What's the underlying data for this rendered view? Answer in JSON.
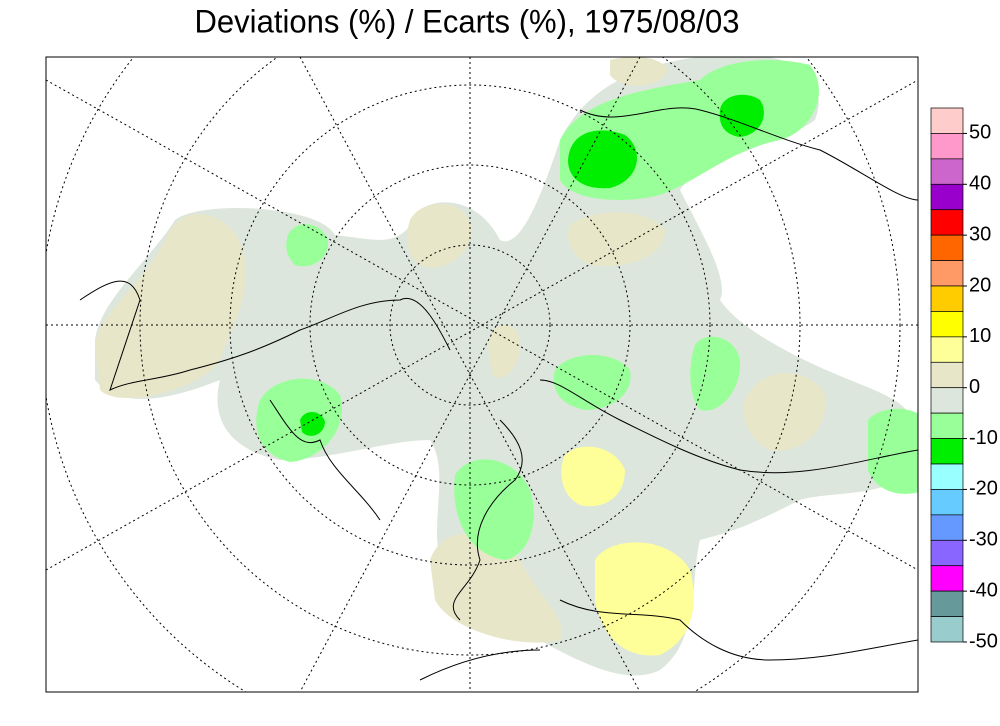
{
  "title": "Deviations (%) / Ecarts (%), 1975/08/03",
  "legend": {
    "edges": [
      55,
      50,
      45,
      40,
      35,
      30,
      25,
      20,
      15,
      10,
      5,
      0,
      -5,
      -10,
      -15,
      -20,
      -25,
      -30,
      -35,
      -40,
      -45,
      -50
    ],
    "colors": [
      "#ffcccc",
      "#ff99cc",
      "#cc66cc",
      "#9900cc",
      "#ff0000",
      "#ff6600",
      "#ff9966",
      "#ffcc00",
      "#ffff00",
      "#ffff99",
      "#e8e6c8",
      "#dde6dc",
      "#99ff99",
      "#00ee00",
      "#99ffff",
      "#66ccff",
      "#6699ff",
      "#8866ff",
      "#ff00ff",
      "#669999",
      "#99cccc"
    ],
    "ticks": [
      50,
      40,
      30,
      20,
      10,
      0,
      -10,
      -20,
      -30,
      -40,
      -50
    ]
  }
}
